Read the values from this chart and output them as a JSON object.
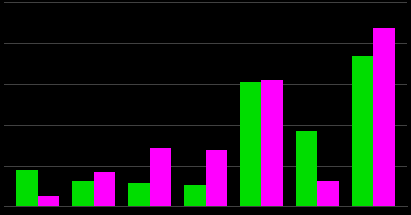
{
  "green_values": [
    0.17,
    0.12,
    0.11,
    0.1,
    0.58,
    0.35,
    0.7
  ],
  "magenta_values": [
    0.05,
    0.16,
    0.27,
    0.26,
    0.59,
    0.12,
    0.83
  ],
  "green_color": "#00dd00",
  "magenta_color": "#ff00ff",
  "background_color": "#000000",
  "grid_color": "#444444",
  "ylim": [
    0,
    0.95
  ],
  "bar_width": 0.38,
  "group_positions": [
    1,
    2,
    3,
    4,
    5,
    6,
    7
  ],
  "n_gridlines": 6
}
